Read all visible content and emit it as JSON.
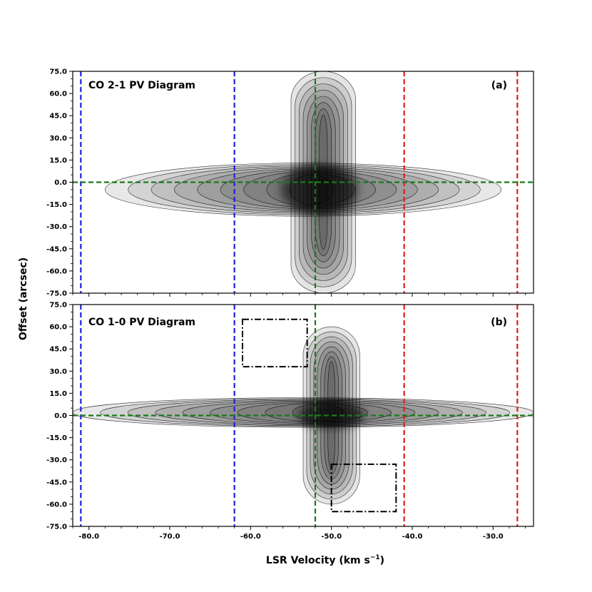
{
  "chart_data": [
    {
      "type": "contour",
      "title": "CO 2-1 PV Diagram",
      "panel_label": "(a)",
      "xlim": [
        -82,
        -25
      ],
      "ylim": [
        -75,
        75
      ],
      "ytick_labels": [
        "75.0",
        "60.0",
        "45.0",
        "30.0",
        "15.0",
        "0.0",
        "-15.0",
        "-30.0",
        "-45.0",
        "-60.0",
        "-75.0"
      ],
      "ytick_values": [
        75,
        60,
        45,
        30,
        15,
        0,
        -15,
        -30,
        -45,
        -60,
        -75
      ],
      "blue_dashed_x": [
        -81,
        -62
      ],
      "green_dashed_x": -52,
      "green_dashed_y": 0,
      "red_dashed_x": [
        -41,
        -27
      ],
      "emission": {
        "horizontal_band": {
          "v_range": [
            -78,
            -29
          ],
          "offset_center": -5,
          "offset_halfwidth": 18
        },
        "vertical_column": {
          "v_center": -51,
          "v_halfwidth": 4,
          "offset_range": [
            -75,
            75
          ]
        },
        "peak": {
          "v": -51.5,
          "offset": -5
        }
      },
      "boxes": []
    },
    {
      "type": "contour",
      "title": "CO 1-0 PV Diagram",
      "panel_label": "(b)",
      "xlim": [
        -82,
        -25
      ],
      "ylim": [
        -75,
        75
      ],
      "ytick_labels": [
        "75.0",
        "60.0",
        "45.0",
        "30.0",
        "15.0",
        "0.0",
        "-15.0",
        "-30.0",
        "-45.0",
        "-60.0",
        "-75.0"
      ],
      "ytick_values": [
        75,
        60,
        45,
        30,
        15,
        0,
        -15,
        -30,
        -45,
        -60,
        -75
      ],
      "blue_dashed_x": [
        -81,
        -62
      ],
      "green_dashed_x": -52,
      "green_dashed_y": 0,
      "red_dashed_x": [
        -41,
        -27
      ],
      "emission": {
        "horizontal_band": {
          "v_range": [
            -82,
            -25
          ],
          "offset_center": 2,
          "offset_halfwidth": 10
        },
        "vertical_column": {
          "v_center": -50,
          "v_halfwidth": 3.5,
          "offset_range": [
            -60,
            60
          ]
        },
        "peak": {
          "v": -50,
          "offset": 0
        }
      },
      "boxes": [
        {
          "v_range": [
            -61,
            -53
          ],
          "offset_range": [
            33,
            65
          ]
        },
        {
          "v_range": [
            -50,
            -42
          ],
          "offset_range": [
            -65,
            -33
          ]
        }
      ]
    }
  ],
  "xtick_labels": [
    "-80.0",
    "-70.0",
    "-60.0",
    "-50.0",
    "-40.0",
    "-30.0"
  ],
  "xtick_values": [
    -80,
    -70,
    -60,
    -50,
    -40,
    -30
  ],
  "xlabel": "LSR Velocity (km s$^{-1}$)",
  "xlabel_text": "LSR Velocity (km s",
  "xlabel_sup": "−1",
  "xlabel_tail": ")",
  "ylabel": "Offset (arcsec)",
  "colors": {
    "blue": "#1f1fdd",
    "green": "#1a7a1a",
    "red": "#dd1f1f",
    "contour": "#000000"
  }
}
